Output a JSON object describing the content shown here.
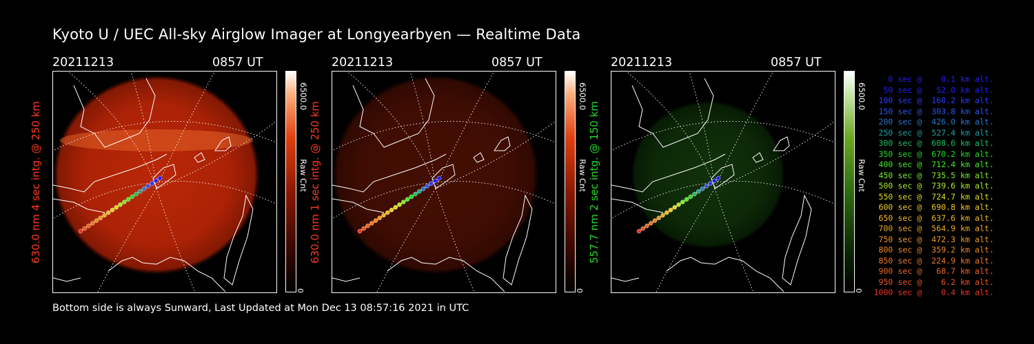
{
  "title": "Kyoto U / UEC All-sky Airglow Imager at Longyearbyen — Realtime Data",
  "footer": "Bottom side is always Sunward, Last Updated at Mon Dec 13 08:57:16 2021 in UTC",
  "panels": [
    {
      "date": "20211213",
      "time": "0857 UT",
      "ylabel": "630.0 nm 4 sec intg. @ 250 km",
      "label_color": "#ff3a1a",
      "cbar_max": "6500.0",
      "cbar_unit": "Raw Cnt",
      "cbar_min": "0",
      "palette": "red",
      "brightness": 0.95
    },
    {
      "date": "20211213",
      "time": "0857 UT",
      "ylabel": "630.0 nm 1 sec intg. @ 250 km",
      "label_color": "#ff3a1a",
      "cbar_max": "6500.0",
      "cbar_unit": "Raw Cnt",
      "cbar_min": "0",
      "palette": "red",
      "brightness": 0.35
    },
    {
      "date": "20211213",
      "time": "0857 UT",
      "ylabel": "557.7 nm 2 sec intg. @ 150 km",
      "label_color": "#22dd22",
      "cbar_max": "6500.0",
      "cbar_unit": "Raw Cnt",
      "cbar_min": "0",
      "palette": "green",
      "brightness": 0.55
    }
  ],
  "trajectory_legend": [
    {
      "text": "   0 sec @    0.1 km alt.",
      "color": "#2020ff"
    },
    {
      "text": "  50 sec @   52.0 km alt.",
      "color": "#2020ff"
    },
    {
      "text": " 100 sec @  160.2 km alt.",
      "color": "#2a3cff"
    },
    {
      "text": " 150 sec @  303.8 km alt.",
      "color": "#2a55ee"
    },
    {
      "text": " 200 sec @  426.0 km alt.",
      "color": "#2878c8"
    },
    {
      "text": " 250 sec @  527.4 km alt.",
      "color": "#1fa0a0"
    },
    {
      "text": " 300 sec @  608.6 km alt.",
      "color": "#18c060"
    },
    {
      "text": " 350 sec @  670.2 km alt.",
      "color": "#22dd22"
    },
    {
      "text": " 400 sec @  712.4 km alt.",
      "color": "#44ee22"
    },
    {
      "text": " 450 sec @  735.5 km alt.",
      "color": "#77ee22"
    },
    {
      "text": " 500 sec @  739.6 km alt.",
      "color": "#aaee22"
    },
    {
      "text": " 550 sec @  724.7 km alt.",
      "color": "#dddd22"
    },
    {
      "text": " 600 sec @  690.8 km alt.",
      "color": "#eecc22"
    },
    {
      "text": " 650 sec @  637.6 km alt.",
      "color": "#eebb22"
    },
    {
      "text": " 700 sec @  564.9 km alt.",
      "color": "#eeaa22"
    },
    {
      "text": " 750 sec @  472.3 km alt.",
      "color": "#ee9922"
    },
    {
      "text": " 800 sec @  359.2 km alt.",
      "color": "#ee8822"
    },
    {
      "text": " 850 sec @  224.9 km alt.",
      "color": "#ee7722"
    },
    {
      "text": " 900 sec @   68.7 km alt.",
      "color": "#ee6622"
    },
    {
      "text": " 950 sec @    6.2 km alt.",
      "color": "#ee5522"
    },
    {
      "text": "1000 sec @    0.4 km alt.",
      "color": "#ee3322"
    }
  ]
}
